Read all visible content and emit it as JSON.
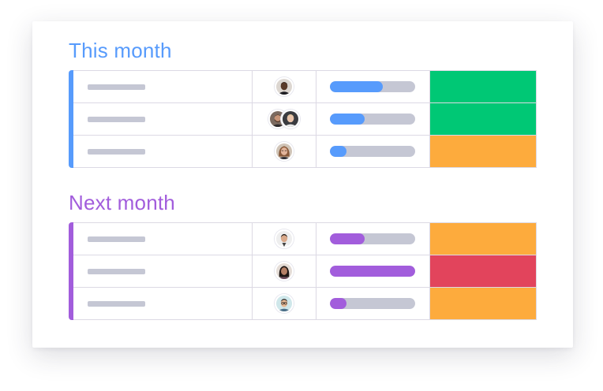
{
  "colors": {
    "this_month": "#579bfc",
    "next_month": "#a25ddc",
    "track": "#c5c7d4",
    "green": "#00c875",
    "orange": "#fdab3d",
    "red": "#e2445c"
  },
  "groups": [
    {
      "title": "This month",
      "accent": "#579bfc",
      "rows": [
        {
          "owners": [
            "person-dark-male"
          ],
          "progress": 0.62,
          "status_color": "#00c875"
        },
        {
          "owners": [
            "person-bearded-male",
            "person-blond-male"
          ],
          "progress": 0.41,
          "status_color": "#00c875"
        },
        {
          "owners": [
            "person-female-brown"
          ],
          "progress": 0.19,
          "status_color": "#fdab3d"
        }
      ]
    },
    {
      "title": "Next month",
      "accent": "#a25ddc",
      "rows": [
        {
          "owners": [
            "person-male-dark-hair"
          ],
          "progress": 0.41,
          "status_color": "#fdab3d"
        },
        {
          "owners": [
            "person-female-dark-hair"
          ],
          "progress": 1.0,
          "status_color": "#e2445c"
        },
        {
          "owners": [
            "person-male-glasses"
          ],
          "progress": 0.19,
          "status_color": "#fdab3d"
        }
      ]
    }
  ]
}
